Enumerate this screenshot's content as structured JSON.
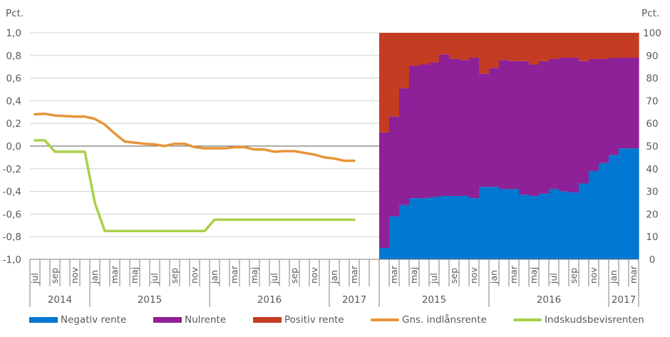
{
  "chart_data": [
    {
      "type": "line",
      "title": "",
      "ylabel": "Pct.",
      "ylim": [
        -1.0,
        1.0
      ],
      "yticks": [
        "1,0",
        "0,8",
        "0,6",
        "0,4",
        "0,2",
        "0,0",
        "-0,2",
        "-0,4",
        "-0,6",
        "-0,8",
        "-1,0"
      ],
      "grid": true,
      "x": [
        "jul 2014",
        "aug 2014",
        "sep 2014",
        "okt 2014",
        "nov 2014",
        "dec 2014",
        "jan 2015",
        "feb 2015",
        "mar 2015",
        "apr 2015",
        "maj 2015",
        "jun 2015",
        "jul 2015",
        "aug 2015",
        "sep 2015",
        "okt 2015",
        "nov 2015",
        "dec 2015",
        "jan 2016",
        "feb 2016",
        "mar 2016",
        "apr 2016",
        "maj 2016",
        "jun 2016",
        "jul 2016",
        "aug 2016",
        "sep 2016",
        "okt 2016",
        "nov 2016",
        "dec 2016",
        "jan 2017",
        "feb 2017",
        "mar 2017",
        "apr 2017",
        "maj 2017"
      ],
      "month_labels": [
        "jul",
        "",
        "sep",
        "",
        "nov",
        "",
        "jan",
        "",
        "mar",
        "",
        "maj",
        "",
        "jul",
        "",
        "sep",
        "",
        "nov",
        "",
        "jan",
        "",
        "mar",
        "",
        "maj",
        "",
        "jul",
        "",
        "sep",
        "",
        "nov",
        "",
        "jan",
        "",
        "mar",
        "",
        ""
      ],
      "years": [
        {
          "label": "2014",
          "start": 0,
          "count": 6
        },
        {
          "label": "2015",
          "start": 6,
          "count": 12
        },
        {
          "label": "2016",
          "start": 18,
          "count": 12
        },
        {
          "label": "2017",
          "start": 30,
          "count": 5
        }
      ],
      "series": [
        {
          "name": "Gns. indlånsrente",
          "color": "#E6953A",
          "values": [
            0.28,
            0.285,
            0.27,
            0.265,
            0.26,
            0.26,
            0.24,
            0.19,
            0.11,
            0.04,
            0.03,
            0.02,
            0.015,
            0.0,
            0.02,
            0.02,
            -0.01,
            -0.02,
            -0.02,
            -0.02,
            -0.01,
            -0.01,
            -0.03,
            -0.03,
            -0.05,
            -0.045,
            -0.045,
            -0.06,
            -0.075,
            -0.1,
            -0.11,
            -0.13,
            -0.13
          ]
        },
        {
          "name": "Indskudsbevisrenten",
          "color": "#A9D04B",
          "values": [
            0.05,
            0.05,
            -0.05,
            -0.05,
            -0.05,
            -0.05,
            -0.5,
            -0.75,
            -0.75,
            -0.75,
            -0.75,
            -0.75,
            -0.75,
            -0.75,
            -0.75,
            -0.75,
            -0.75,
            -0.75,
            -0.65,
            -0.65,
            -0.65,
            -0.65,
            -0.65,
            -0.65,
            -0.65,
            -0.65,
            -0.65,
            -0.65,
            -0.65,
            -0.65,
            -0.65,
            -0.65,
            -0.65
          ]
        }
      ]
    },
    {
      "type": "bar",
      "stacked": true,
      "ylabel": "Pct.",
      "ylim": [
        0,
        100
      ],
      "yticks": [
        "100",
        "90",
        "80",
        "70",
        "60",
        "50",
        "40",
        "30",
        "20",
        "10",
        "0"
      ],
      "x": [
        "feb 2015",
        "mar 2015",
        "apr 2015",
        "maj 2015",
        "jun 2015",
        "jul 2015",
        "aug 2015",
        "sep 2015",
        "okt 2015",
        "nov 2015",
        "dec 2015",
        "jan 2016",
        "feb 2016",
        "mar 2016",
        "apr 2016",
        "maj 2016",
        "jun 2016",
        "jul 2016",
        "aug 2016",
        "sep 2016",
        "okt 2016",
        "nov 2016",
        "dec 2016",
        "jan 2017",
        "feb 2017",
        "mar 2017"
      ],
      "month_labels": [
        "",
        "mar",
        "",
        "maj",
        "",
        "jul",
        "",
        "sep",
        "",
        "nov",
        "",
        "jan",
        "",
        "mar",
        "",
        "maj",
        "",
        "jul",
        "",
        "sep",
        "",
        "nov",
        "",
        "jan",
        "",
        "mar"
      ],
      "years": [
        {
          "label": "2015",
          "start": 0,
          "count": 11
        },
        {
          "label": "2016",
          "start": 11,
          "count": 12
        },
        {
          "label": "2017",
          "start": 23,
          "count": 3
        }
      ],
      "series": [
        {
          "name": "Negativ rente",
          "color": "#0077D0",
          "values": [
            5,
            19,
            24,
            27,
            27,
            27.5,
            28,
            28,
            28,
            27,
            32,
            32,
            31,
            31,
            28.5,
            28,
            29,
            31,
            30,
            29.5,
            33.5,
            39,
            42.5,
            46,
            49,
            49
          ]
        },
        {
          "name": "Nulrente",
          "color": "#8E2197",
          "values": [
            51,
            44,
            51.5,
            58.5,
            59,
            59.5,
            62.5,
            60.5,
            60,
            62,
            50,
            52.5,
            57,
            56.5,
            59,
            58,
            58.5,
            57.5,
            59,
            59.5,
            54,
            49.5,
            46,
            43,
            40,
            40
          ]
        },
        {
          "name": "Positiv rente",
          "color": "#C43C22",
          "values": [
            44,
            37,
            24.5,
            14.5,
            14,
            13,
            9.5,
            11.5,
            12,
            11,
            18,
            15.5,
            12,
            12.5,
            12.5,
            14,
            12.5,
            11.5,
            11,
            11,
            12.5,
            11.5,
            11.5,
            11,
            11,
            11
          ]
        }
      ]
    }
  ],
  "legend": [
    {
      "label": "Negativ rente",
      "kind": "swatch",
      "color": "#0077D0"
    },
    {
      "label": "Nulrente",
      "kind": "swatch",
      "color": "#8E2197"
    },
    {
      "label": "Positiv rente",
      "kind": "swatch",
      "color": "#C43C22"
    },
    {
      "label": "Gns. indlånsrente",
      "kind": "line",
      "color": "#E6953A"
    },
    {
      "label": "Indskudsbevisrenten",
      "kind": "line",
      "color": "#A9D04B"
    }
  ],
  "axis_unit_left": "Pct.",
  "axis_unit_right": "Pct."
}
